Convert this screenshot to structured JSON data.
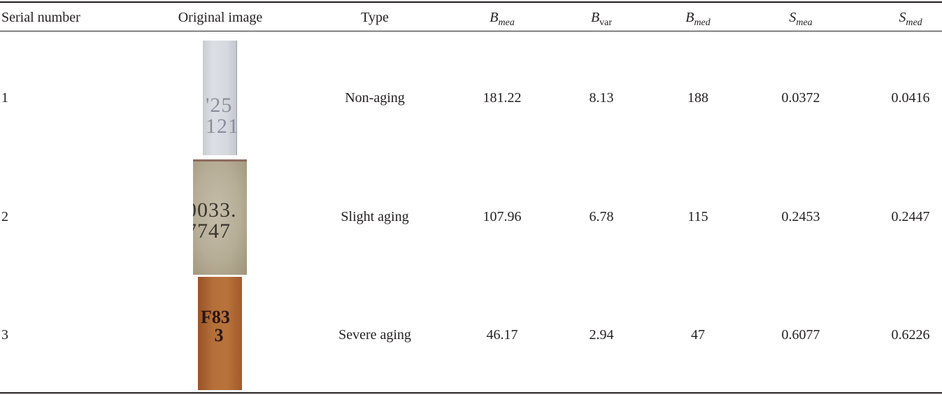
{
  "headers": {
    "serial": "Serial number",
    "image": "Original image",
    "type": "Type",
    "b_mea": {
      "symbol": "B",
      "sub": "mea"
    },
    "b_var": {
      "symbol": "B",
      "sub": "var"
    },
    "b_med": {
      "symbol": "B",
      "sub": "med"
    },
    "s_mea": {
      "symbol": "S",
      "sub": "mea"
    },
    "s_med": {
      "symbol": "S",
      "sub": "med"
    }
  },
  "rows": [
    {
      "serial": "1",
      "thumb_text": "'25\n121",
      "type": "Non-aging",
      "b_mea": "181.22",
      "b_var": "8.13",
      "b_med": "188",
      "s_mea": "0.0372",
      "s_med": "0.0416"
    },
    {
      "serial": "2",
      "thumb_text": "0033.\n7747",
      "type": "Slight aging",
      "b_mea": "107.96",
      "b_var": "6.78",
      "b_med": "115",
      "s_mea": "0.2453",
      "s_med": "0.2447"
    },
    {
      "serial": "3",
      "thumb_text": "F83\n   3",
      "type": "Severe aging",
      "b_mea": "46.17",
      "b_var": "2.94",
      "b_med": "47",
      "s_mea": "0.6077",
      "s_med": "0.6226"
    }
  ]
}
